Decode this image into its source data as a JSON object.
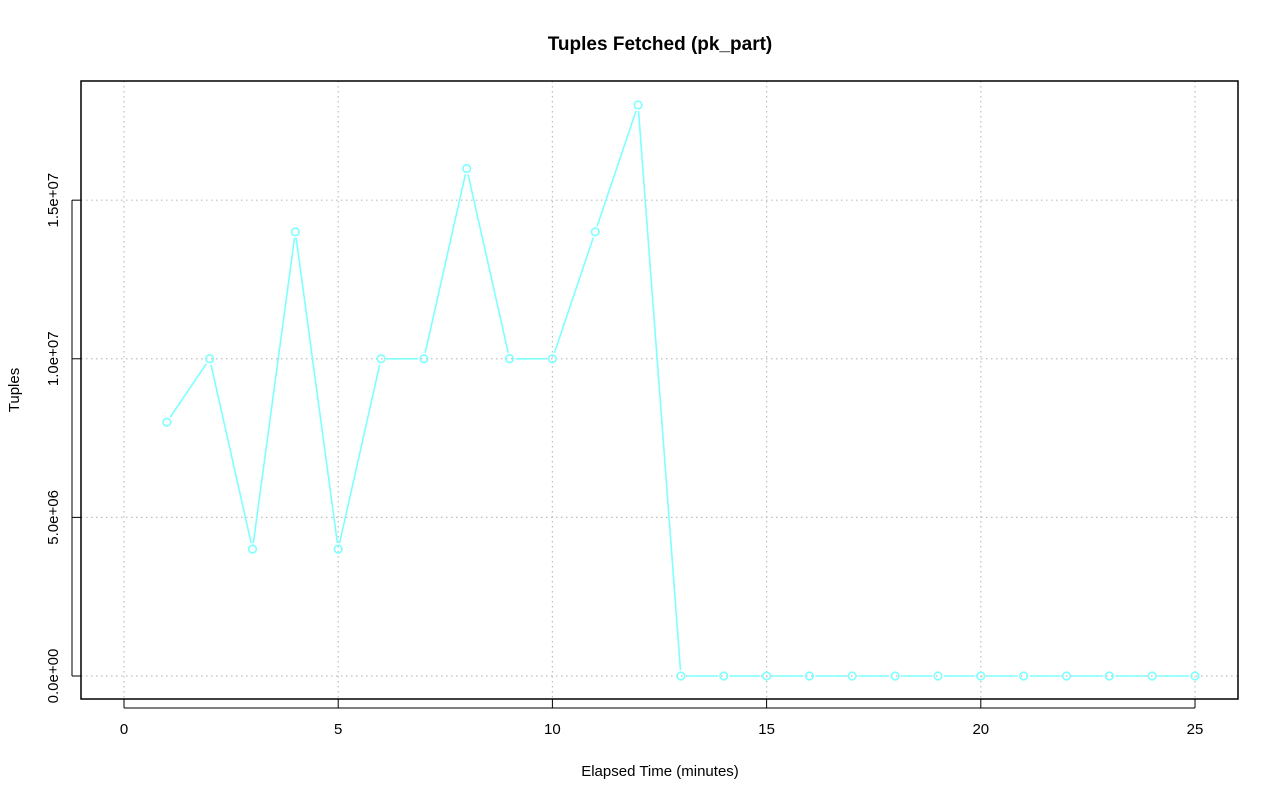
{
  "chart_data": {
    "type": "line",
    "title": "Tuples Fetched (pk_part)",
    "xlabel": "Elapsed Time (minutes)",
    "ylabel": "Tuples",
    "xlim": [
      0,
      25
    ],
    "ylim": [
      0,
      18000000
    ],
    "x_ticks": [
      0,
      5,
      10,
      15,
      20,
      25
    ],
    "x_tick_labels": [
      "0",
      "5",
      "10",
      "15",
      "20",
      "25"
    ],
    "y_ticks": [
      0,
      5000000,
      10000000,
      15000000
    ],
    "y_tick_labels": [
      "0.0e+00",
      "5.0e+06",
      "1.0e+07",
      "1.5e+07"
    ],
    "grid": true,
    "series": [
      {
        "color": "#7fffff",
        "marker": "open-circle",
        "x": [
          1,
          2,
          3,
          4,
          5,
          6,
          7,
          8,
          9,
          10,
          11,
          12,
          13,
          14,
          15,
          16,
          17,
          18,
          19,
          20,
          21,
          22,
          23,
          24,
          25
        ],
        "values": [
          8000000,
          10000000,
          4000000,
          14000000,
          4000000,
          10000000,
          10000000,
          16000000,
          10000000,
          10000000,
          14000000,
          18000000,
          0,
          0,
          0,
          0,
          0,
          0,
          0,
          0,
          0,
          0,
          0,
          0,
          0
        ]
      }
    ]
  }
}
